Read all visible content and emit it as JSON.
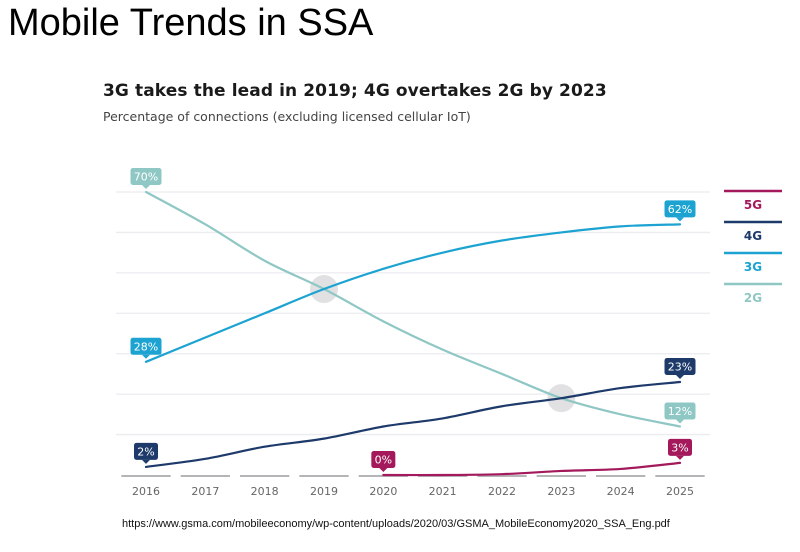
{
  "slide": {
    "title": "Mobile Trends in SSA",
    "source": "https://www.gsma.com/mobileeconomy/wp-content/uploads/2020/03/GSMA_MobileEconomy2020_SSA_Eng.pdf"
  },
  "chart_data": {
    "type": "line",
    "title": "3G takes the lead in 2019; 4G overtakes 2G by 2023",
    "subtitle": "Percentage of connections (excluding licensed cellular IoT)",
    "xlabel": "",
    "ylabel": "",
    "x": [
      "2016",
      "2017",
      "2018",
      "2019",
      "2020",
      "2021",
      "2022",
      "2023",
      "2024",
      "2025"
    ],
    "ylim": [
      0,
      70
    ],
    "ygrid_step": 10,
    "grid": true,
    "legend_position": "right",
    "series": [
      {
        "name": "5G",
        "color": "#a3195b",
        "values": [
          null,
          null,
          null,
          null,
          0,
          0,
          0.2,
          1,
          1.5,
          3
        ],
        "labels": [
          {
            "index": 4,
            "text": "0%"
          },
          {
            "index": 9,
            "text": "3%"
          }
        ]
      },
      {
        "name": "4G",
        "color": "#1d3a6b",
        "values": [
          2,
          4,
          7,
          9,
          12,
          14,
          17,
          19,
          21.5,
          23
        ],
        "labels": [
          {
            "index": 0,
            "text": "2%"
          },
          {
            "index": 9,
            "text": "23%"
          }
        ]
      },
      {
        "name": "3G",
        "color": "#1ca3d1",
        "values": [
          28,
          34,
          40,
          46,
          51,
          55,
          58,
          60,
          61.5,
          62
        ],
        "labels": [
          {
            "index": 0,
            "text": "28%"
          },
          {
            "index": 9,
            "text": "62%"
          }
        ]
      },
      {
        "name": "2G",
        "color": "#8fc7c4",
        "values": [
          70,
          62,
          53,
          46,
          38,
          31,
          25,
          19,
          15,
          12
        ],
        "labels": [
          {
            "index": 0,
            "text": "70%"
          },
          {
            "index": 9,
            "text": "12%"
          }
        ]
      }
    ],
    "annotations": [
      {
        "type": "highlight-circle",
        "x": "2019",
        "y": 46,
        "note": "3G overtakes 2G"
      },
      {
        "type": "highlight-circle",
        "x": "2023",
        "y": 19,
        "note": "4G overtakes 2G"
      }
    ]
  }
}
